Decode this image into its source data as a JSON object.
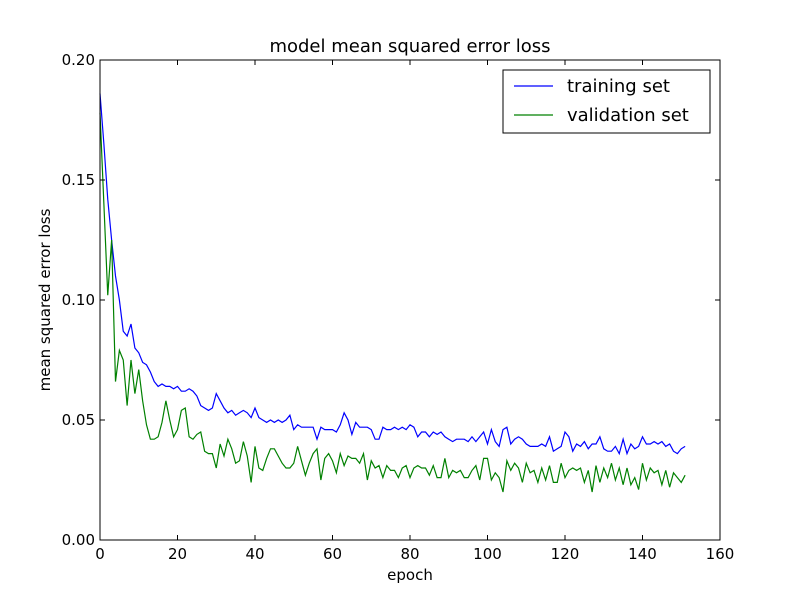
{
  "chart_data": {
    "type": "line",
    "title": "model mean squared error loss",
    "xlabel": "epoch",
    "ylabel": "mean squared error loss",
    "xlim": [
      0,
      160
    ],
    "ylim": [
      0.0,
      0.2
    ],
    "grid": false,
    "legend_position": "top-right",
    "x_ticks": [
      "0",
      "20",
      "40",
      "60",
      "80",
      "100",
      "120",
      "140",
      "160"
    ],
    "y_ticks": [
      "0.00",
      "0.05",
      "0.10",
      "0.15",
      "0.20"
    ],
    "series": [
      {
        "name": "training set",
        "color": "#0000ff",
        "values": [
          0.186,
          0.165,
          0.142,
          0.125,
          0.11,
          0.1,
          0.087,
          0.085,
          0.09,
          0.08,
          0.078,
          0.074,
          0.073,
          0.07,
          0.066,
          0.064,
          0.065,
          0.064,
          0.064,
          0.063,
          0.064,
          0.062,
          0.062,
          0.063,
          0.062,
          0.06,
          0.056,
          0.055,
          0.054,
          0.055,
          0.061,
          0.058,
          0.055,
          0.053,
          0.054,
          0.052,
          0.053,
          0.054,
          0.053,
          0.051,
          0.055,
          0.051,
          0.05,
          0.049,
          0.05,
          0.049,
          0.05,
          0.049,
          0.05,
          0.052,
          0.046,
          0.048,
          0.047,
          0.047,
          0.047,
          0.047,
          0.042,
          0.047,
          0.046,
          0.046,
          0.046,
          0.045,
          0.048,
          0.053,
          0.05,
          0.044,
          0.049,
          0.047,
          0.047,
          0.047,
          0.046,
          0.042,
          0.042,
          0.047,
          0.046,
          0.046,
          0.047,
          0.046,
          0.047,
          0.046,
          0.048,
          0.047,
          0.043,
          0.045,
          0.045,
          0.043,
          0.045,
          0.044,
          0.045,
          0.043,
          0.042,
          0.041,
          0.042,
          0.042,
          0.042,
          0.041,
          0.043,
          0.041,
          0.043,
          0.045,
          0.04,
          0.046,
          0.041,
          0.039,
          0.046,
          0.047,
          0.04,
          0.042,
          0.043,
          0.042,
          0.04,
          0.039,
          0.039,
          0.039,
          0.04,
          0.039,
          0.043,
          0.037,
          0.038,
          0.039,
          0.045,
          0.043,
          0.037,
          0.04,
          0.039,
          0.041,
          0.038,
          0.04,
          0.04,
          0.043,
          0.038,
          0.037,
          0.037,
          0.039,
          0.036,
          0.042,
          0.036,
          0.04,
          0.038,
          0.039,
          0.043,
          0.04,
          0.04,
          0.041,
          0.04,
          0.041,
          0.039,
          0.04,
          0.037,
          0.036,
          0.038,
          0.039
        ],
        "x_start": 0
      },
      {
        "name": "validation set",
        "color": "#008000",
        "values": [
          0.178,
          0.14,
          0.102,
          0.125,
          0.066,
          0.079,
          0.075,
          0.056,
          0.075,
          0.061,
          0.071,
          0.058,
          0.048,
          0.042,
          0.042,
          0.043,
          0.049,
          0.058,
          0.05,
          0.043,
          0.046,
          0.054,
          0.055,
          0.043,
          0.042,
          0.044,
          0.045,
          0.037,
          0.036,
          0.036,
          0.03,
          0.04,
          0.035,
          0.042,
          0.038,
          0.032,
          0.033,
          0.041,
          0.035,
          0.024,
          0.039,
          0.03,
          0.029,
          0.034,
          0.038,
          0.038,
          0.035,
          0.032,
          0.03,
          0.03,
          0.032,
          0.039,
          0.033,
          0.027,
          0.032,
          0.036,
          0.038,
          0.025,
          0.034,
          0.036,
          0.033,
          0.028,
          0.036,
          0.031,
          0.035,
          0.034,
          0.034,
          0.032,
          0.036,
          0.025,
          0.033,
          0.03,
          0.031,
          0.026,
          0.031,
          0.029,
          0.029,
          0.026,
          0.03,
          0.031,
          0.026,
          0.03,
          0.031,
          0.03,
          0.03,
          0.027,
          0.031,
          0.026,
          0.026,
          0.034,
          0.026,
          0.029,
          0.028,
          0.029,
          0.026,
          0.026,
          0.029,
          0.031,
          0.025,
          0.034,
          0.034,
          0.025,
          0.028,
          0.026,
          0.02,
          0.033,
          0.029,
          0.032,
          0.03,
          0.024,
          0.032,
          0.028,
          0.029,
          0.024,
          0.03,
          0.025,
          0.031,
          0.024,
          0.024,
          0.032,
          0.026,
          0.029,
          0.03,
          0.029,
          0.03,
          0.024,
          0.029,
          0.02,
          0.031,
          0.024,
          0.03,
          0.026,
          0.032,
          0.025,
          0.03,
          0.023,
          0.03,
          0.023,
          0.026,
          0.021,
          0.032,
          0.025,
          0.03,
          0.028,
          0.029,
          0.023,
          0.029,
          0.022,
          0.028,
          0.026,
          0.024,
          0.027
        ],
        "x_start": 0
      }
    ]
  }
}
